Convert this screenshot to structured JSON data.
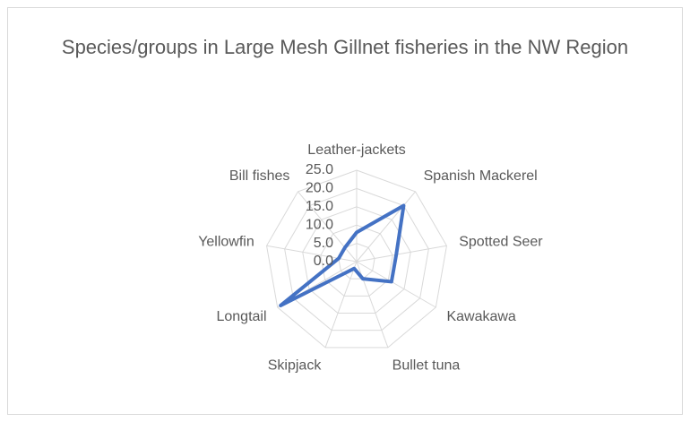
{
  "chart_data": {
    "type": "radar",
    "title": "Species/groups in Large Mesh Gillnet fisheries in the NW Region",
    "categories": [
      "Leather-jackets",
      "Spanish Mackerel",
      "Spotted Seer",
      "Kawakawa",
      "Bullet tuna",
      "Skipjack",
      "Longtail",
      "Yellowfin",
      "Bill fishes"
    ],
    "values": [
      8,
      20,
      11,
      11,
      5,
      2,
      24,
      5,
      5
    ],
    "color": "#4472c4",
    "ylim": [
      0,
      25
    ],
    "yticks": [
      {
        "value": 0,
        "label": "0.0"
      },
      {
        "value": 5,
        "label": "5.0"
      },
      {
        "value": 10,
        "label": "10.0"
      },
      {
        "value": 15,
        "label": "15.0"
      },
      {
        "value": 20,
        "label": "20.0"
      },
      {
        "value": 25,
        "label": "25.0"
      }
    ],
    "grid": true
  }
}
